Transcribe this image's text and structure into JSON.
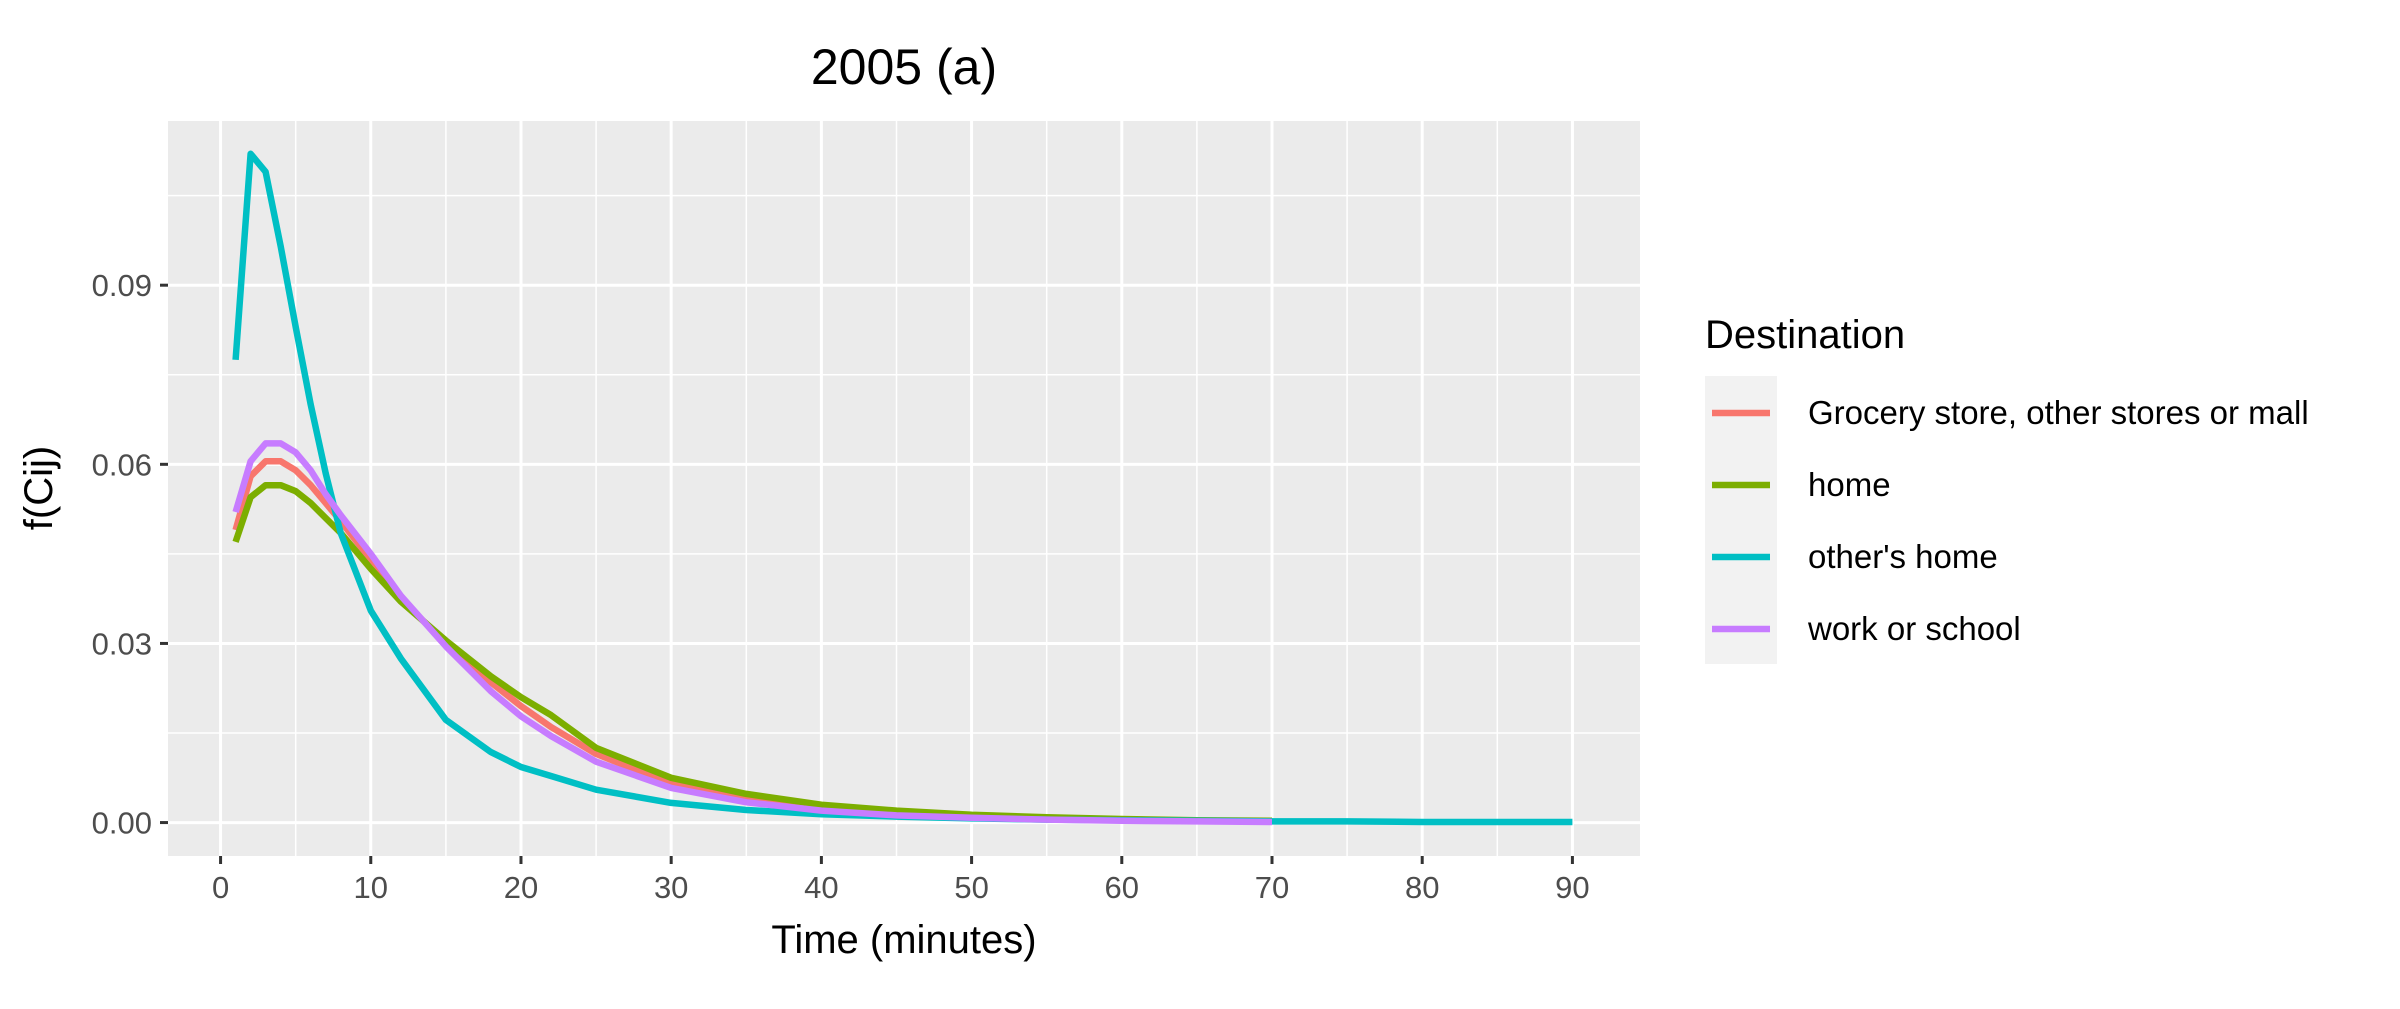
{
  "chart_data": {
    "type": "line",
    "title": "2005 (a)",
    "xlabel": "Time (minutes)",
    "ylabel": "f(Cij)",
    "xlim": [
      -3.5,
      94.5
    ],
    "ylim": [
      -0.0056,
      0.1175
    ],
    "x_ticks": [
      0,
      10,
      20,
      30,
      40,
      50,
      60,
      70,
      80,
      90
    ],
    "x_tick_labels": [
      "0",
      "10",
      "20",
      "30",
      "40",
      "50",
      "60",
      "70",
      "80",
      "90"
    ],
    "y_ticks": [
      0.0,
      0.03,
      0.06,
      0.09
    ],
    "y_tick_labels": [
      "0.00",
      "0.03",
      "0.06",
      "0.09"
    ],
    "x_minor_ticks": [
      5,
      15,
      25,
      35,
      45,
      55,
      65,
      75,
      85
    ],
    "y_minor_ticks": [
      0.015,
      0.045,
      0.075,
      0.105
    ],
    "grid": true,
    "legend": {
      "title": "Destination",
      "position": "right"
    },
    "series": [
      {
        "name": "Grocery store, other stores or mall",
        "color": "#F8766D",
        "x": [
          1,
          2,
          3,
          4,
          5,
          6,
          7,
          8,
          10,
          12,
          15,
          18,
          20,
          22,
          25,
          30,
          35,
          40,
          45,
          50,
          55,
          60,
          65,
          70
        ],
        "y": [
          0.049,
          0.058,
          0.0605,
          0.0605,
          0.059,
          0.0565,
          0.0535,
          0.0505,
          0.044,
          0.0375,
          0.03,
          0.0235,
          0.0195,
          0.016,
          0.0115,
          0.0065,
          0.004,
          0.0025,
          0.0015,
          0.001,
          0.0006,
          0.0004,
          0.0003,
          0.0002
        ]
      },
      {
        "name": "home",
        "color": "#7CAE00",
        "x": [
          1,
          2,
          3,
          4,
          5,
          6,
          7,
          8,
          10,
          12,
          15,
          18,
          20,
          22,
          25,
          30,
          35,
          40,
          45,
          50,
          55,
          60,
          65,
          70
        ],
        "y": [
          0.047,
          0.0545,
          0.0565,
          0.0565,
          0.0555,
          0.0535,
          0.051,
          0.0485,
          0.0425,
          0.037,
          0.0305,
          0.0245,
          0.021,
          0.018,
          0.0125,
          0.0075,
          0.0048,
          0.003,
          0.002,
          0.0013,
          0.0009,
          0.0006,
          0.0004,
          0.0003
        ]
      },
      {
        "name": "other's home",
        "color": "#00BFC4",
        "x": [
          1,
          2,
          3,
          4,
          5,
          6,
          7,
          8,
          10,
          12,
          15,
          18,
          20,
          22,
          25,
          30,
          35,
          40,
          45,
          50,
          55,
          60,
          65,
          70,
          75,
          80,
          85,
          90
        ],
        "y": [
          0.0775,
          0.112,
          0.109,
          0.0965,
          0.083,
          0.07,
          0.0585,
          0.0485,
          0.0355,
          0.0275,
          0.0172,
          0.0118,
          0.0093,
          0.0078,
          0.0055,
          0.0033,
          0.0021,
          0.0014,
          0.001,
          0.0007,
          0.0005,
          0.0004,
          0.0003,
          0.0002,
          0.0002,
          0.0001,
          0.0001,
          0.0001
        ]
      },
      {
        "name": "work or school",
        "color": "#C77CFF",
        "x": [
          1,
          2,
          3,
          4,
          5,
          6,
          7,
          8,
          10,
          12,
          15,
          18,
          20,
          22,
          25,
          30,
          35,
          40,
          45,
          50,
          55,
          60,
          65,
          70
        ],
        "y": [
          0.052,
          0.0605,
          0.0635,
          0.0635,
          0.062,
          0.059,
          0.055,
          0.0515,
          0.045,
          0.038,
          0.0295,
          0.022,
          0.0178,
          0.0145,
          0.0102,
          0.0058,
          0.0034,
          0.002,
          0.0012,
          0.0008,
          0.0005,
          0.0003,
          0.0002,
          0.0001
        ]
      }
    ]
  }
}
